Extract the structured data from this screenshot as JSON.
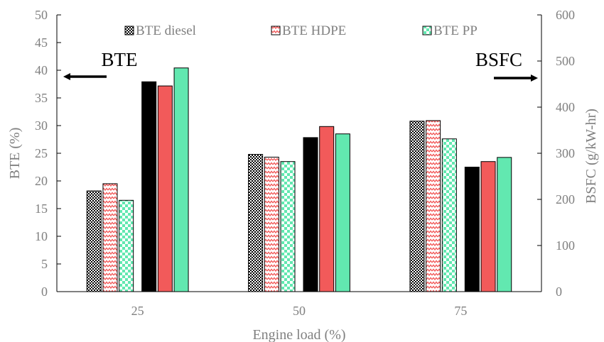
{
  "chart_data": {
    "type": "bar",
    "categories": [
      "25",
      "50",
      "75"
    ],
    "xlabel": "Engine load (%)",
    "ylabel": "BTE (%)",
    "y2label": "BSFC (g/kW-hr)",
    "ylim": [
      0,
      50
    ],
    "y2lim": [
      0,
      600
    ],
    "yticks": [
      0,
      5,
      10,
      15,
      20,
      25,
      30,
      35,
      40,
      45,
      50
    ],
    "y2ticks": [
      0,
      100,
      200,
      300,
      400,
      500,
      600
    ],
    "grid": false,
    "legend_position": "top",
    "series": [
      {
        "name": "BTE diesel",
        "axis": "left",
        "values": [
          18.2,
          24.8,
          30.8
        ],
        "color": "#000000",
        "pattern": "dots"
      },
      {
        "name": "BTE HDPE",
        "axis": "left",
        "values": [
          19.5,
          24.3,
          30.9
        ],
        "color": "#f25a5a",
        "pattern": "zigzag"
      },
      {
        "name": "BTE PP",
        "axis": "left",
        "values": [
          16.5,
          23.5,
          27.6
        ],
        "color": "#62e8b0",
        "pattern": "checker"
      },
      {
        "axis": "right",
        "values": [
          455,
          334,
          270
        ],
        "color": "#000000",
        "pattern": "solid"
      },
      {
        "axis": "right",
        "values": [
          446,
          358,
          282
        ],
        "color": "#f25a5a",
        "pattern": "solid"
      },
      {
        "axis": "right",
        "values": [
          485,
          342,
          291
        ],
        "color": "#62e8b0",
        "pattern": "solid"
      }
    ],
    "annotations": [
      {
        "text": "BTE",
        "arrow": "left"
      },
      {
        "text": "BSFC",
        "arrow": "right"
      }
    ]
  }
}
